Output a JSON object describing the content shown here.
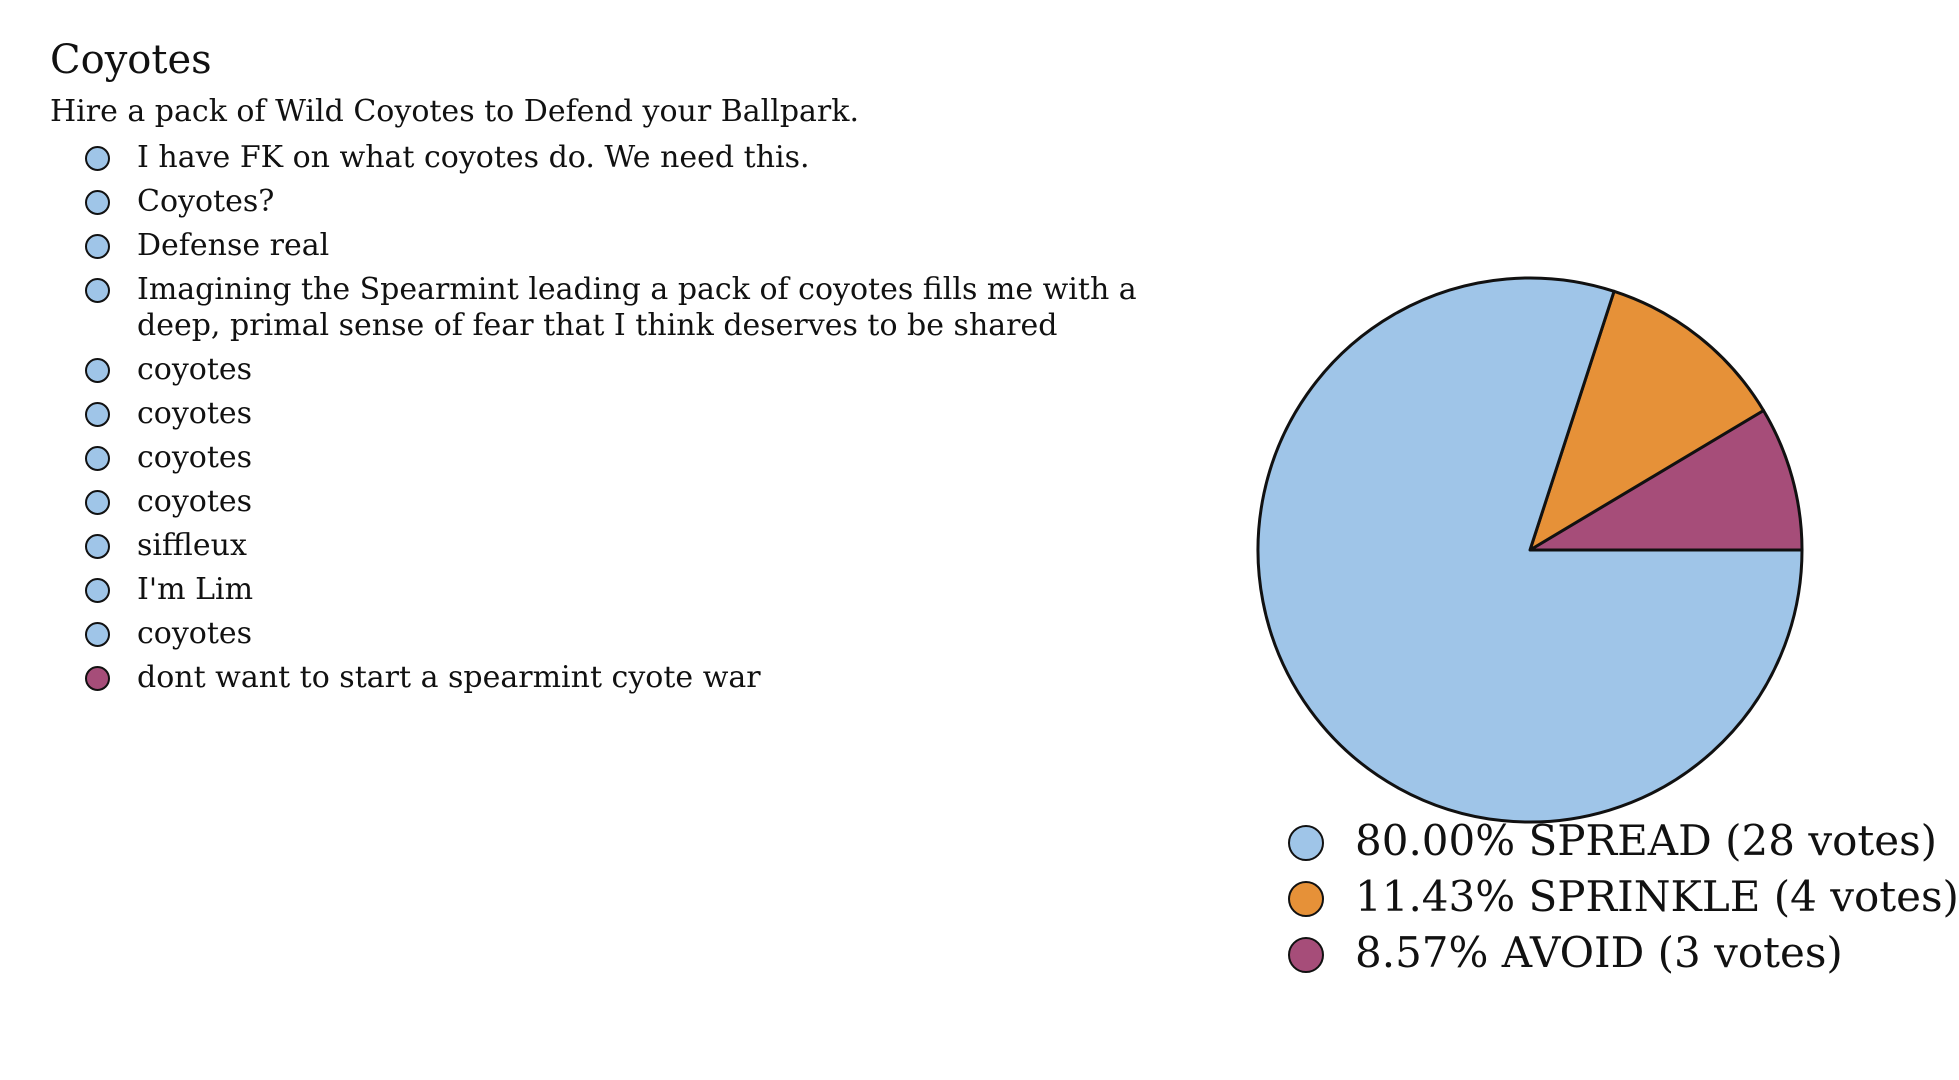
{
  "poll": {
    "title": "Coyotes",
    "subtitle": "Hire a pack of Wild Coyotes to Defend your Ballpark."
  },
  "colors": {
    "spread": "#9fc5e8",
    "sprinkle": "#e69138",
    "avoid": "#a64d79",
    "outline": "#111111"
  },
  "reasons": [
    {
      "text": "I have FK on what coyotes do. We need this.",
      "vote": "spread"
    },
    {
      "text": "Coyotes?",
      "vote": "spread"
    },
    {
      "text": "Defense real",
      "vote": "spread"
    },
    {
      "text": "Imagining the Spearmint leading a pack of coyotes fills me with a deep, primal sense of fear that I think deserves to be shared",
      "vote": "spread"
    },
    {
      "text": "coyotes",
      "vote": "spread"
    },
    {
      "text": "coyotes",
      "vote": "spread"
    },
    {
      "text": "coyotes",
      "vote": "spread"
    },
    {
      "text": "coyotes",
      "vote": "spread"
    },
    {
      "text": "siffleux",
      "vote": "spread"
    },
    {
      "text": "I'm Lim",
      "vote": "spread"
    },
    {
      "text": "coyotes",
      "vote": "spread"
    },
    {
      "text": "dont want to start a spearmint cyote war",
      "vote": "avoid"
    }
  ],
  "chart_data": {
    "type": "pie",
    "slices": [
      {
        "key": "spread",
        "label": "80.00% SPREAD (28 votes)",
        "value": 28,
        "percent": 80.0,
        "color": "#9fc5e8"
      },
      {
        "key": "sprinkle",
        "label": "11.43% SPRINKLE (4 votes)",
        "value": 4,
        "percent": 11.43,
        "color": "#e69138"
      },
      {
        "key": "avoid",
        "label": "8.57% AVOID (3 votes)",
        "value": 3,
        "percent": 8.57,
        "color": "#a64d79"
      }
    ],
    "legend_position": "bottom"
  }
}
